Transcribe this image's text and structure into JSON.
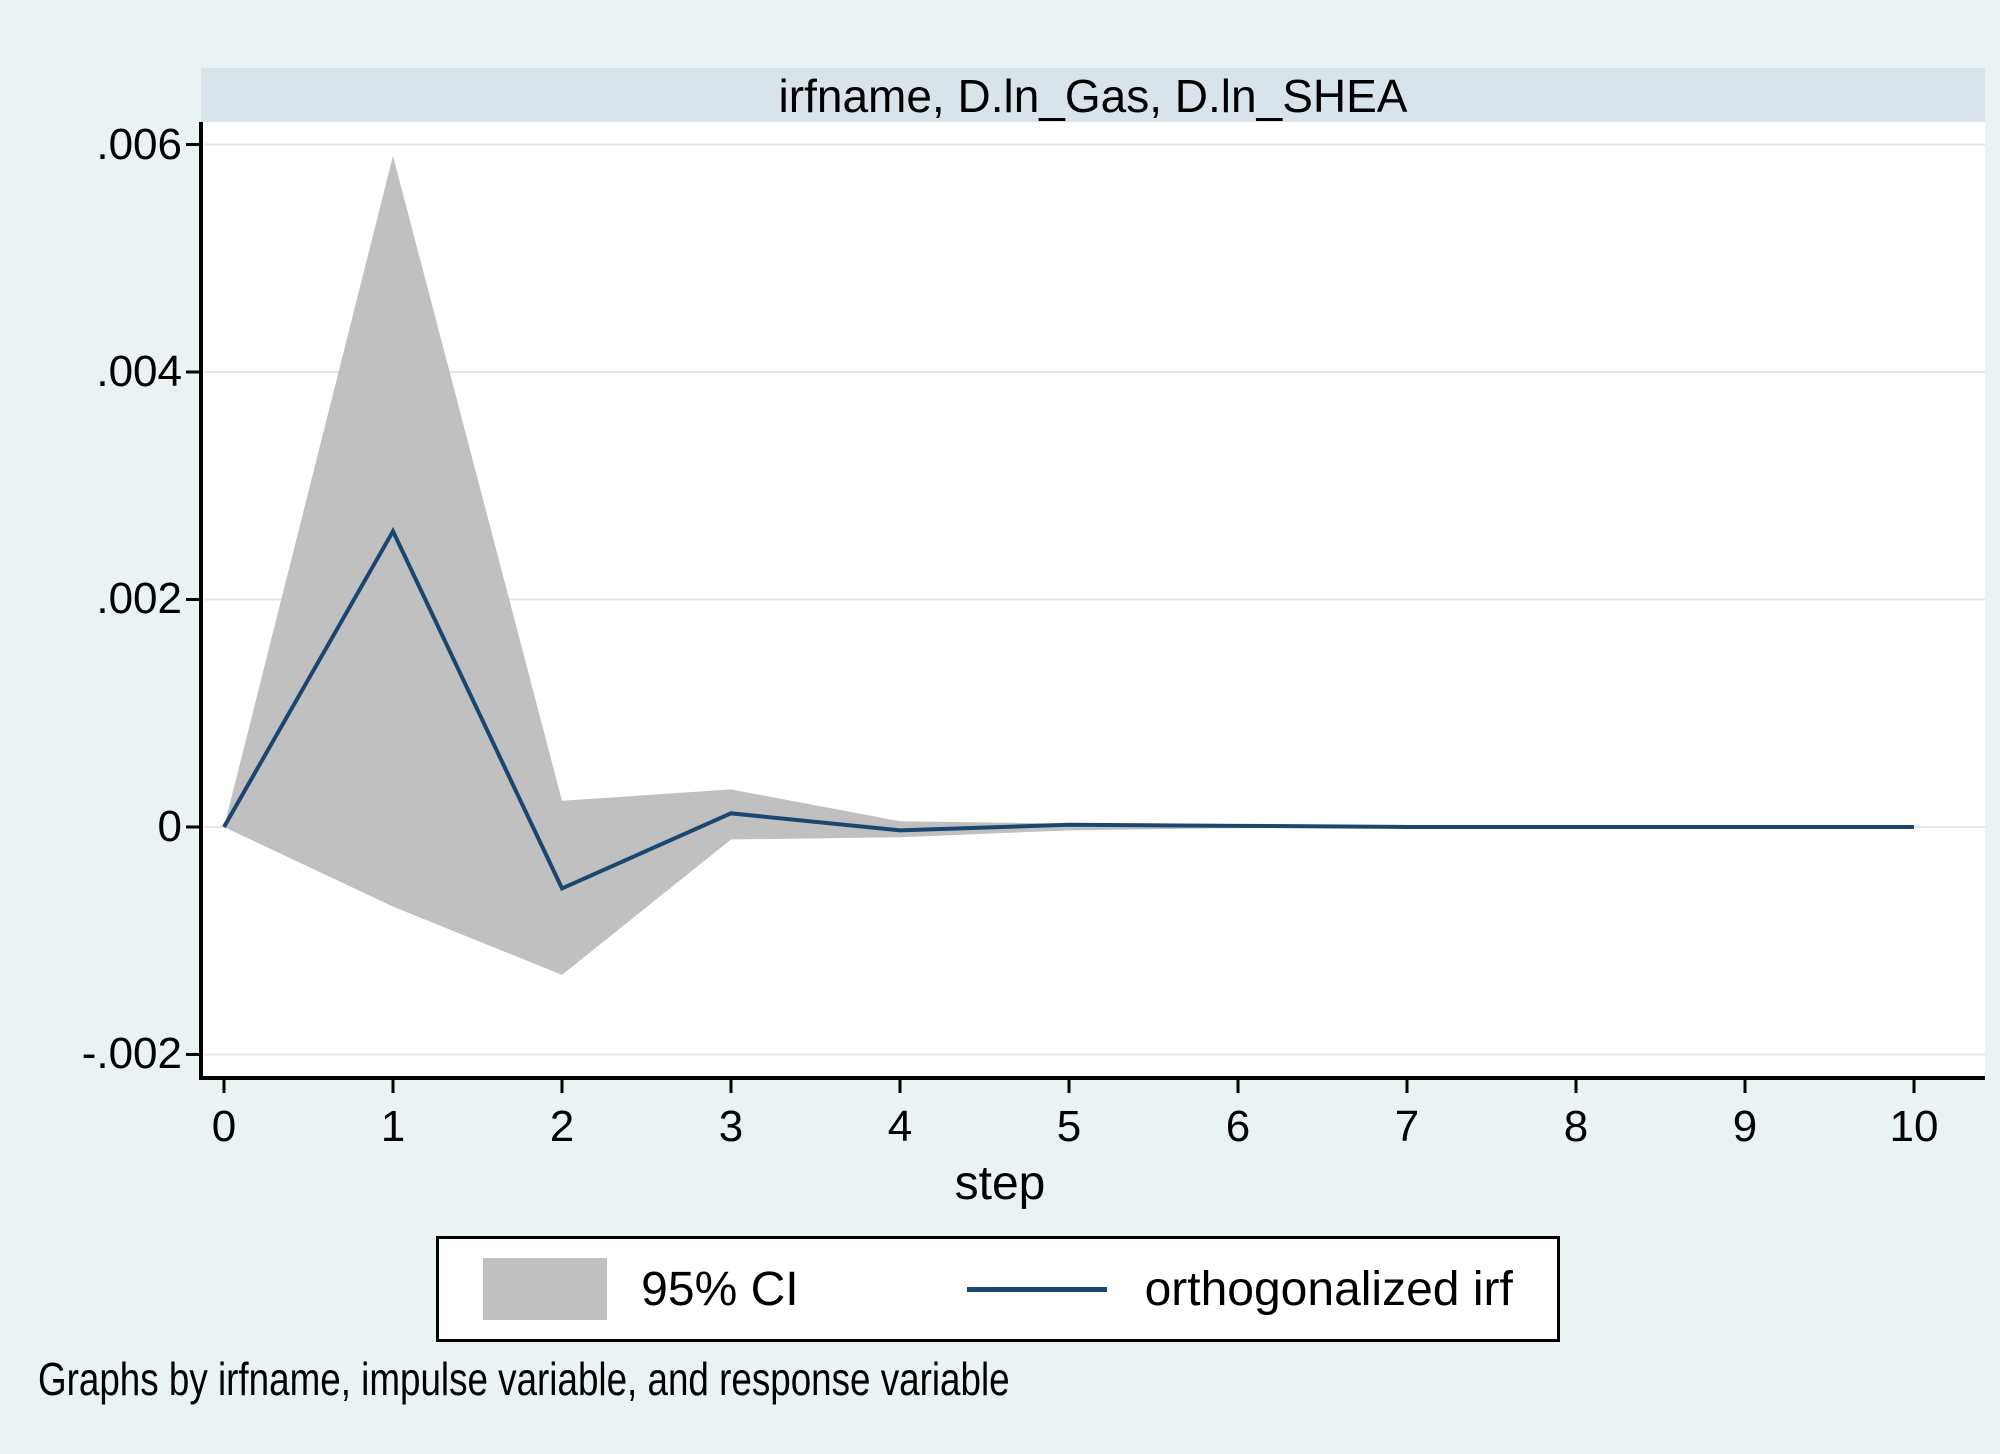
{
  "window": {
    "background": "#eaf2f3",
    "title_bar_bg": "#d9e3ea",
    "plot_bg": "#ffffff"
  },
  "chart_data": {
    "type": "area",
    "title": "irfname, D.ln_Gas, D.ln_SHEA",
    "xlabel": "step",
    "x": [
      0,
      1,
      2,
      3,
      4,
      5,
      6,
      7,
      8,
      9,
      10
    ],
    "series": [
      {
        "name": "95% CI",
        "type": "band",
        "color": "#c0c0c0",
        "upper": [
          0,
          0.0059,
          0.00023,
          0.00033,
          5e-05,
          3e-05,
          1e-05,
          1e-05,
          0,
          0,
          0
        ],
        "lower": [
          0,
          -0.0007,
          -0.0013,
          -0.00011,
          -9e-05,
          -3e-05,
          -1e-05,
          -1e-05,
          0,
          0,
          0
        ]
      },
      {
        "name": "orthogonalized irf",
        "type": "line",
        "color": "#1a476f",
        "values": [
          0,
          0.0026,
          -0.00054,
          0.00012,
          -3e-05,
          2e-05,
          1e-05,
          0,
          0,
          0,
          0
        ]
      }
    ],
    "y_ticks": [
      {
        "label": ".006",
        "value": 0.006
      },
      {
        "label": ".004",
        "value": 0.004
      },
      {
        "label": ".002",
        "value": 0.002
      },
      {
        "label": "0",
        "value": 0
      },
      {
        "label": "-.002",
        "value": -0.002
      }
    ],
    "x_ticks": [
      {
        "label": "0",
        "value": 0
      },
      {
        "label": "1",
        "value": 1
      },
      {
        "label": "2",
        "value": 2
      },
      {
        "label": "3",
        "value": 3
      },
      {
        "label": "4",
        "value": 4
      },
      {
        "label": "5",
        "value": 5
      },
      {
        "label": "6",
        "value": 6
      },
      {
        "label": "7",
        "value": 7
      },
      {
        "label": "8",
        "value": 8
      },
      {
        "label": "9",
        "value": 9
      },
      {
        "label": "10",
        "value": 10
      }
    ],
    "ylim": [
      -0.002207,
      0.006198
    ],
    "xlim": [
      -0.136,
      10.42
    ],
    "grid": true,
    "grid_color": "#e4e8e8",
    "axis_color": "#000000",
    "legend_position": "bottom"
  },
  "caption": "Graphs by irfname, impulse variable, and response variable"
}
